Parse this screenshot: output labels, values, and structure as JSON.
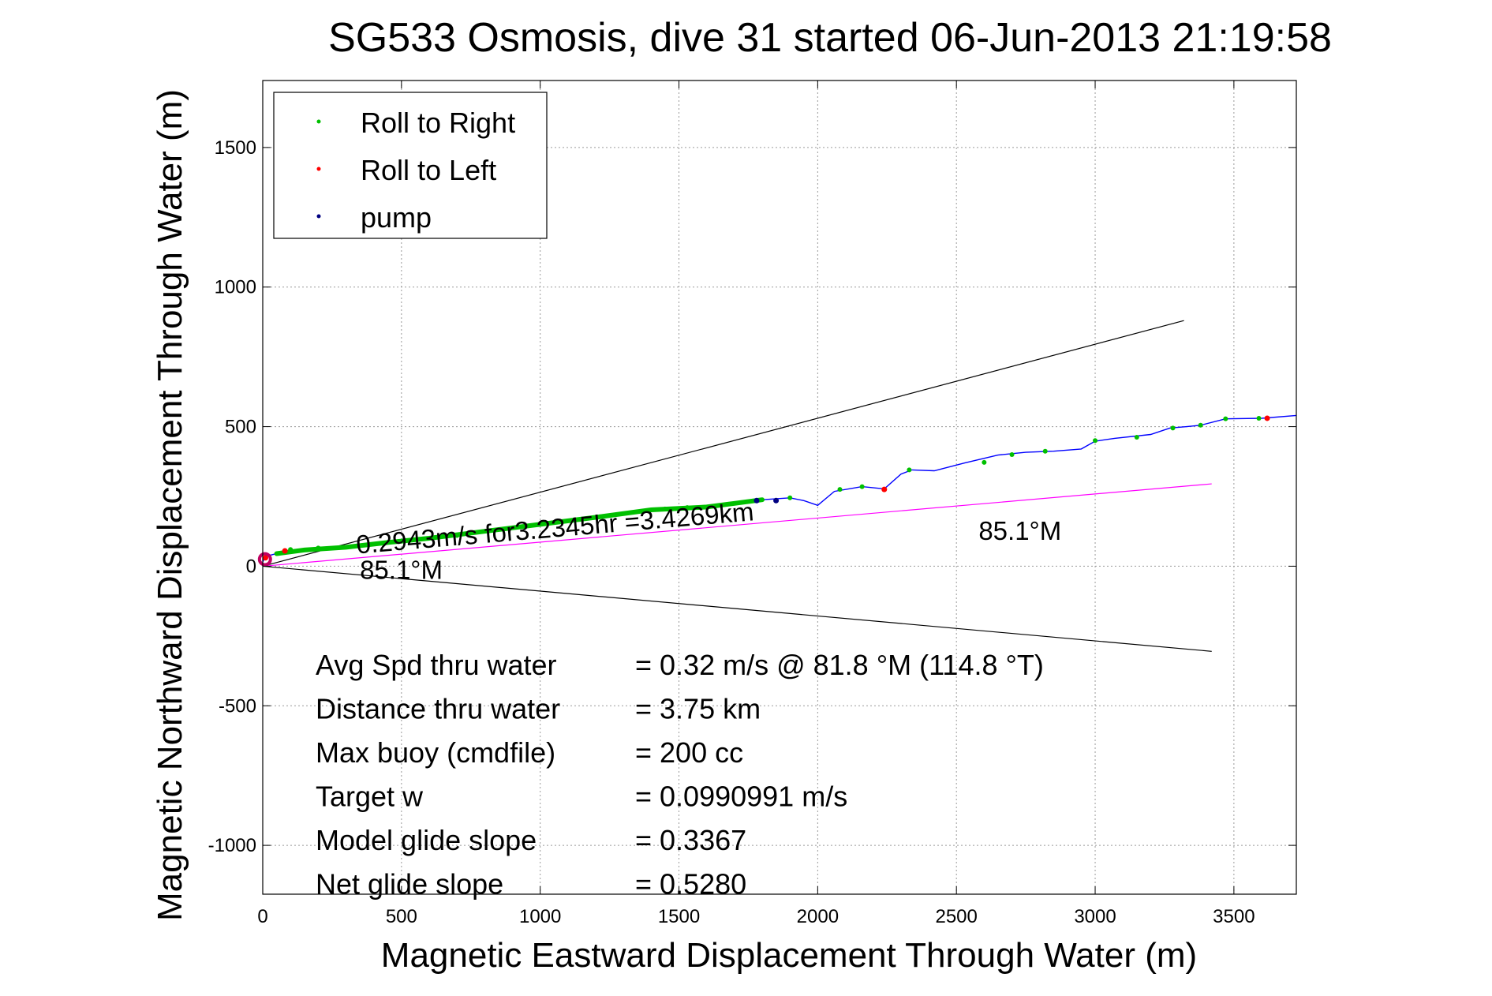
{
  "chart_data": {
    "type": "line",
    "title": "SG533 Osmosis, dive 31 started 06-Jun-2013 21:19:58",
    "xlabel": "Magnetic Eastward Displacement Through Water (m)",
    "ylabel": "Magnetic Northward Displacement Through Water (m)",
    "xlim": [
      0,
      3725
    ],
    "ylim": [
      -1175,
      1740
    ],
    "xticks": [
      0,
      500,
      1000,
      1500,
      2000,
      2500,
      3000,
      3500
    ],
    "yticks": [
      -1000,
      -500,
      0,
      500,
      1000,
      1500
    ],
    "grid": true,
    "legend_position": "top-left",
    "legend": [
      {
        "label": "Roll to Right",
        "color": "#00c000"
      },
      {
        "label": "Roll to Left",
        "color": "#ff0000"
      },
      {
        "label": "pump",
        "color": "#000080"
      }
    ],
    "track": {
      "color": "#0000ff",
      "points": [
        [
          0,
          15
        ],
        [
          10,
          35
        ],
        [
          50,
          45
        ],
        [
          150,
          58
        ],
        [
          300,
          68
        ],
        [
          450,
          85
        ],
        [
          600,
          100
        ],
        [
          800,
          125
        ],
        [
          1000,
          150
        ],
        [
          1200,
          175
        ],
        [
          1400,
          202
        ],
        [
          1600,
          212
        ],
        [
          1700,
          225
        ],
        [
          1800,
          238
        ],
        [
          1900,
          245
        ],
        [
          1950,
          235
        ],
        [
          2000,
          218
        ],
        [
          2060,
          268
        ],
        [
          2160,
          285
        ],
        [
          2240,
          277
        ],
        [
          2300,
          330
        ],
        [
          2340,
          345
        ],
        [
          2420,
          342
        ],
        [
          2530,
          370
        ],
        [
          2650,
          398
        ],
        [
          2750,
          408
        ],
        [
          2850,
          412
        ],
        [
          2950,
          420
        ],
        [
          3000,
          448
        ],
        [
          3070,
          458
        ],
        [
          3200,
          472
        ],
        [
          3270,
          495
        ],
        [
          3330,
          500
        ],
        [
          3380,
          505
        ],
        [
          3470,
          528
        ],
        [
          3600,
          530
        ],
        [
          3725,
          540
        ]
      ]
    },
    "roll_right_points": [
      [
        100,
        60
      ],
      [
        200,
        65
      ],
      [
        700,
        110
      ],
      [
        1450,
        205
      ],
      [
        1530,
        210
      ],
      [
        1900,
        245
      ],
      [
        2080,
        275
      ],
      [
        2160,
        285
      ],
      [
        2330,
        345
      ],
      [
        2600,
        372
      ],
      [
        2700,
        400
      ],
      [
        2820,
        412
      ],
      [
        3000,
        450
      ],
      [
        3150,
        462
      ],
      [
        3280,
        495
      ],
      [
        3380,
        505
      ],
      [
        3470,
        528
      ],
      [
        3590,
        530
      ]
    ],
    "roll_left_points": [
      [
        10,
        30
      ],
      [
        80,
        55
      ],
      [
        2240,
        275
      ],
      [
        3620,
        530
      ]
    ],
    "pump_points": [
      [
        1780,
        235
      ],
      [
        1850,
        235
      ]
    ],
    "reference_lines": [
      {
        "name": "upper",
        "color": "#000000",
        "points": [
          [
            0,
            0
          ],
          [
            3320,
            880
          ]
        ]
      },
      {
        "name": "lower",
        "color": "#000000",
        "points": [
          [
            0,
            0
          ],
          [
            3420,
            -305
          ]
        ]
      },
      {
        "name": "heading",
        "color": "#ff00ff",
        "points": [
          [
            0,
            0
          ],
          [
            3420,
            295
          ]
        ]
      }
    ],
    "annotations": [
      {
        "text": "0.2943m/s for3.2345hr =3.4269km",
        "x": 340,
        "y": 45,
        "rotation": -4.8
      },
      {
        "text": "85.1°M",
        "x": 350,
        "y": -45,
        "rotation": 0
      },
      {
        "text": "85.1°M",
        "x": 2580,
        "y": 95,
        "rotation": 0
      }
    ],
    "stats": [
      {
        "label": "Avg Spd thru water",
        "value": "=  0.32 m/s @  81.8 °M (114.8 °T)"
      },
      {
        "label": "Distance thru water",
        "value": "=  3.75 km"
      },
      {
        "label": "Max buoy (cmdfile)",
        "value": "= 200 cc"
      },
      {
        "label": "Target w",
        "value": "= 0.0990991 m/s"
      },
      {
        "label": "Model glide slope",
        "value": "= 0.3367"
      },
      {
        "label": "Net glide slope",
        "value": "= 0.5280"
      }
    ]
  }
}
